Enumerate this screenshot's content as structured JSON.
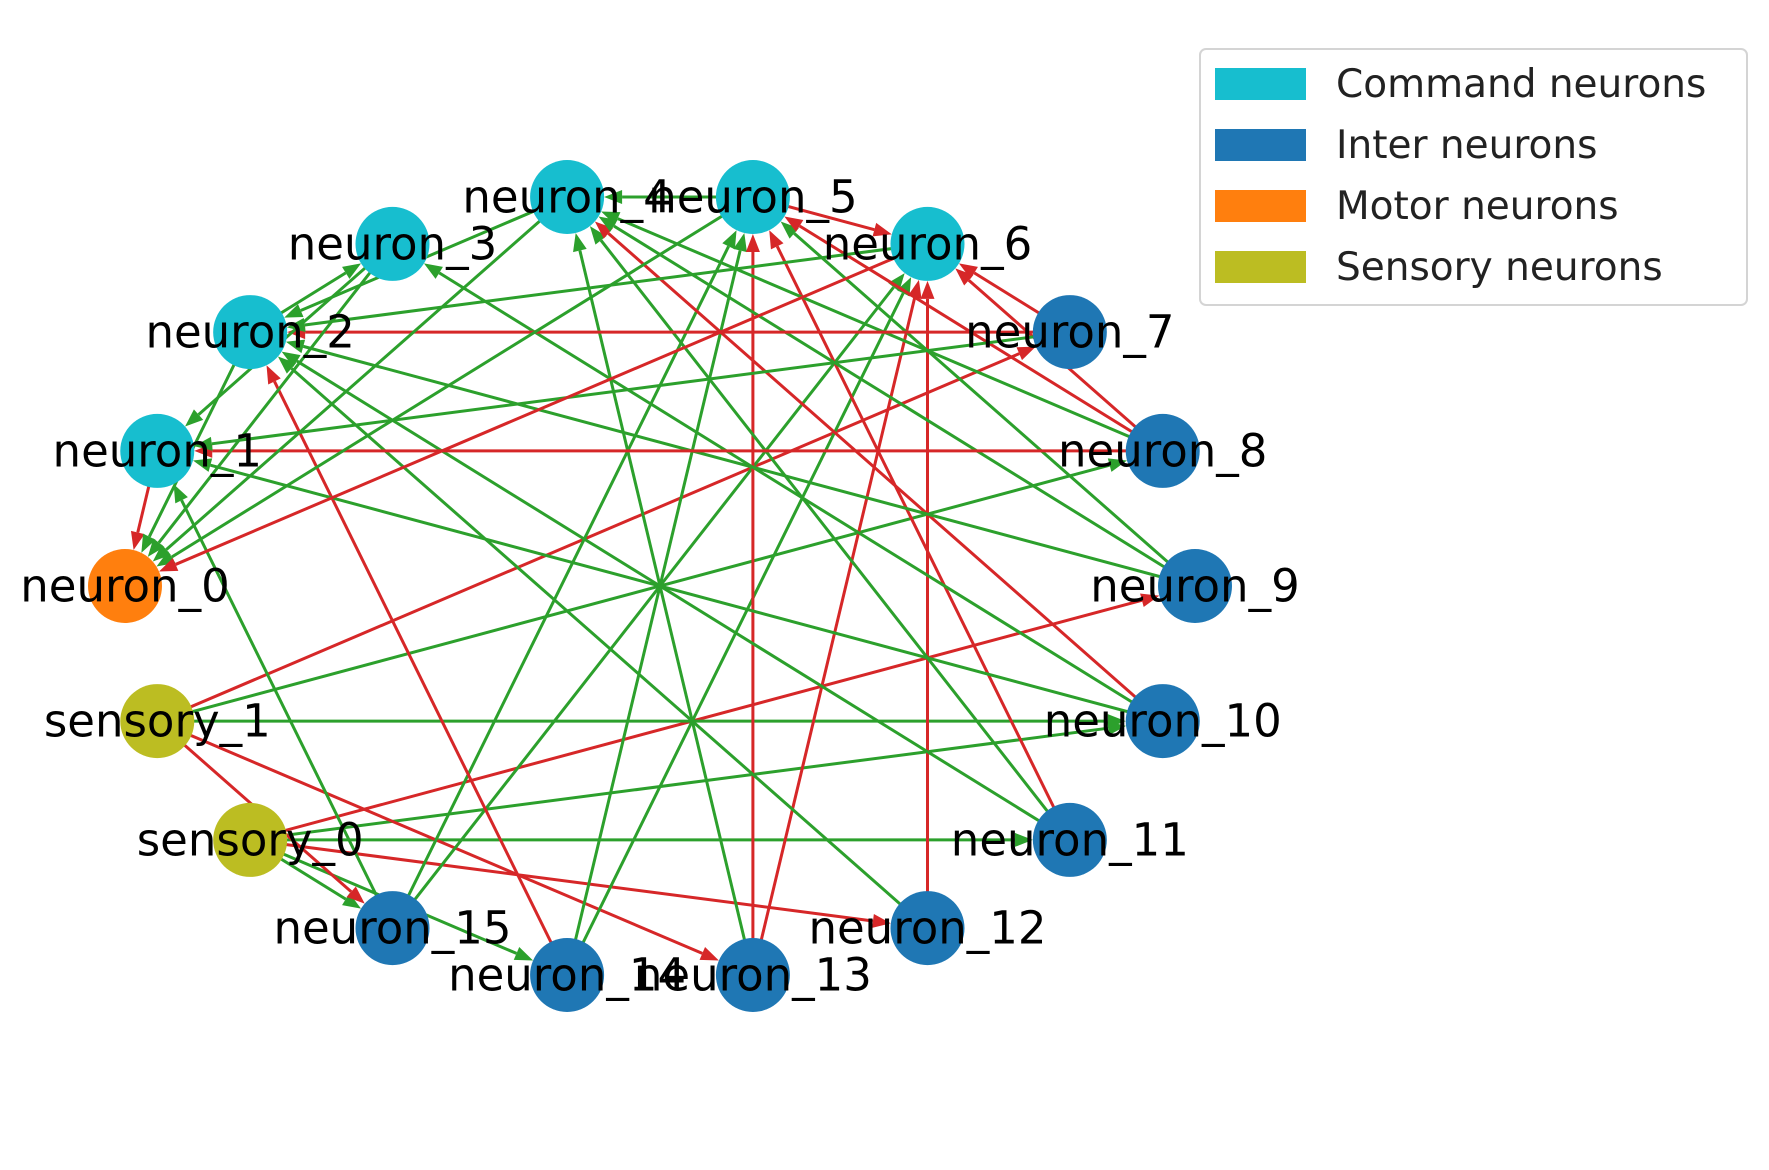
{
  "colors": {
    "command": "#17becf",
    "inter": "#1f77b4",
    "motor": "#ff7f0e",
    "sensory": "#bcbd22",
    "excitatory_edge": "#2ca02c",
    "inhibitory_edge": "#d62728"
  },
  "legend": {
    "items": [
      {
        "label": "Command neurons",
        "type": "command"
      },
      {
        "label": "Inter neurons",
        "type": "inter"
      },
      {
        "label": "Motor neurons",
        "type": "motor"
      },
      {
        "label": "Sensory neurons",
        "type": "sensory"
      }
    ]
  },
  "nodes": [
    {
      "id": "neuron_0",
      "label": "neuron_0",
      "type": "motor"
    },
    {
      "id": "neuron_1",
      "label": "neuron_1",
      "type": "command"
    },
    {
      "id": "neuron_2",
      "label": "neuron_2",
      "type": "command"
    },
    {
      "id": "neuron_3",
      "label": "neuron_3",
      "type": "command"
    },
    {
      "id": "neuron_4",
      "label": "neuron_4",
      "type": "command"
    },
    {
      "id": "neuron_5",
      "label": "neuron_5",
      "type": "command"
    },
    {
      "id": "neuron_6",
      "label": "neuron_6",
      "type": "command"
    },
    {
      "id": "neuron_7",
      "label": "neuron_7",
      "type": "inter"
    },
    {
      "id": "neuron_8",
      "label": "neuron_8",
      "type": "inter"
    },
    {
      "id": "neuron_9",
      "label": "neuron_9",
      "type": "inter"
    },
    {
      "id": "neuron_10",
      "label": "neuron_10",
      "type": "inter"
    },
    {
      "id": "neuron_11",
      "label": "neuron_11",
      "type": "inter"
    },
    {
      "id": "neuron_12",
      "label": "neuron_12",
      "type": "inter"
    },
    {
      "id": "neuron_13",
      "label": "neuron_13",
      "type": "inter"
    },
    {
      "id": "neuron_14",
      "label": "neuron_14",
      "type": "inter"
    },
    {
      "id": "neuron_15",
      "label": "neuron_15",
      "type": "inter"
    },
    {
      "id": "sensory_0",
      "label": "sensory_0",
      "type": "sensory"
    },
    {
      "id": "sensory_1",
      "label": "sensory_1",
      "type": "sensory"
    }
  ],
  "edges": [
    {
      "from": "sensory_0",
      "to": "neuron_15",
      "polarity": "excitatory"
    },
    {
      "from": "sensory_0",
      "to": "neuron_14",
      "polarity": "excitatory"
    },
    {
      "from": "sensory_0",
      "to": "neuron_12",
      "polarity": "inhibitory"
    },
    {
      "from": "sensory_0",
      "to": "neuron_11",
      "polarity": "excitatory"
    },
    {
      "from": "sensory_0",
      "to": "neuron_10",
      "polarity": "excitatory"
    },
    {
      "from": "sensory_0",
      "to": "neuron_9",
      "polarity": "inhibitory"
    },
    {
      "from": "sensory_1",
      "to": "neuron_15",
      "polarity": "inhibitory"
    },
    {
      "from": "sensory_1",
      "to": "neuron_13",
      "polarity": "inhibitory"
    },
    {
      "from": "sensory_1",
      "to": "neuron_10",
      "polarity": "excitatory"
    },
    {
      "from": "sensory_1",
      "to": "neuron_8",
      "polarity": "excitatory"
    },
    {
      "from": "sensory_1",
      "to": "neuron_7",
      "polarity": "inhibitory"
    },
    {
      "from": "neuron_15",
      "to": "neuron_1",
      "polarity": "excitatory"
    },
    {
      "from": "neuron_15",
      "to": "neuron_5",
      "polarity": "excitatory"
    },
    {
      "from": "neuron_15",
      "to": "neuron_6",
      "polarity": "excitatory"
    },
    {
      "from": "neuron_14",
      "to": "neuron_2",
      "polarity": "inhibitory"
    },
    {
      "from": "neuron_14",
      "to": "neuron_5",
      "polarity": "excitatory"
    },
    {
      "from": "neuron_14",
      "to": "neuron_6",
      "polarity": "excitatory"
    },
    {
      "from": "neuron_13",
      "to": "neuron_4",
      "polarity": "excitatory"
    },
    {
      "from": "neuron_13",
      "to": "neuron_5",
      "polarity": "inhibitory"
    },
    {
      "from": "neuron_13",
      "to": "neuron_6",
      "polarity": "inhibitory"
    },
    {
      "from": "neuron_12",
      "to": "neuron_2",
      "polarity": "excitatory"
    },
    {
      "from": "neuron_12",
      "to": "neuron_6",
      "polarity": "inhibitory"
    },
    {
      "from": "neuron_11",
      "to": "neuron_2",
      "polarity": "excitatory"
    },
    {
      "from": "neuron_11",
      "to": "neuron_4",
      "polarity": "excitatory"
    },
    {
      "from": "neuron_11",
      "to": "neuron_5",
      "polarity": "inhibitory"
    },
    {
      "from": "neuron_10",
      "to": "neuron_1",
      "polarity": "excitatory"
    },
    {
      "from": "neuron_10",
      "to": "neuron_3",
      "polarity": "excitatory"
    },
    {
      "from": "neuron_10",
      "to": "neuron_4",
      "polarity": "inhibitory"
    },
    {
      "from": "neuron_9",
      "to": "neuron_2",
      "polarity": "excitatory"
    },
    {
      "from": "neuron_9",
      "to": "neuron_4",
      "polarity": "excitatory"
    },
    {
      "from": "neuron_9",
      "to": "neuron_5",
      "polarity": "excitatory"
    },
    {
      "from": "neuron_8",
      "to": "neuron_1",
      "polarity": "inhibitory"
    },
    {
      "from": "neuron_8",
      "to": "neuron_4",
      "polarity": "excitatory"
    },
    {
      "from": "neuron_8",
      "to": "neuron_5",
      "polarity": "inhibitory"
    },
    {
      "from": "neuron_8",
      "to": "neuron_6",
      "polarity": "inhibitory"
    },
    {
      "from": "neuron_7",
      "to": "neuron_1",
      "polarity": "excitatory"
    },
    {
      "from": "neuron_7",
      "to": "neuron_2",
      "polarity": "inhibitory"
    },
    {
      "from": "neuron_7",
      "to": "neuron_6",
      "polarity": "inhibitory"
    },
    {
      "from": "neuron_1",
      "to": "neuron_0",
      "polarity": "inhibitory"
    },
    {
      "from": "neuron_2",
      "to": "neuron_0",
      "polarity": "excitatory"
    },
    {
      "from": "neuron_2",
      "to": "neuron_3",
      "polarity": "excitatory"
    },
    {
      "from": "neuron_3",
      "to": "neuron_0",
      "polarity": "excitatory"
    },
    {
      "from": "neuron_3",
      "to": "neuron_1",
      "polarity": "excitatory"
    },
    {
      "from": "neuron_4",
      "to": "neuron_0",
      "polarity": "excitatory"
    },
    {
      "from": "neuron_4",
      "to": "neuron_2",
      "polarity": "excitatory"
    },
    {
      "from": "neuron_5",
      "to": "neuron_0",
      "polarity": "excitatory"
    },
    {
      "from": "neuron_5",
      "to": "neuron_4",
      "polarity": "excitatory"
    },
    {
      "from": "neuron_5",
      "to": "neuron_6",
      "polarity": "inhibitory"
    },
    {
      "from": "neuron_6",
      "to": "neuron_0",
      "polarity": "inhibitory"
    },
    {
      "from": "neuron_6",
      "to": "neuron_2",
      "polarity": "excitatory"
    }
  ]
}
